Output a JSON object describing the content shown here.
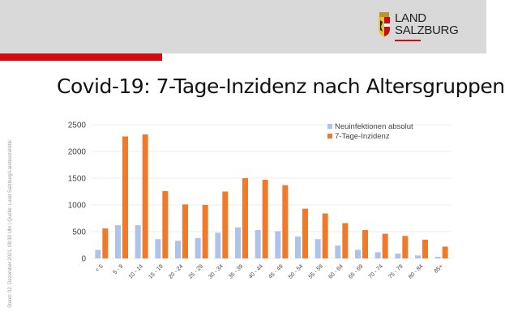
{
  "header": {
    "logo_line1": "LAND",
    "logo_line2": "SALZBURG"
  },
  "title": "Covid-19: 7-Tage-Inzidenz nach Altersgruppen",
  "side_note": "Stand: 02. Dezember 2021, 08:30 Uhr | Quelle: Land Salzburg/Landesstatistik",
  "colors": {
    "blue": "#aec3e8",
    "orange": "#f07a2a",
    "red": "#d20a11"
  },
  "chart_data": {
    "type": "bar",
    "title": "Covid-19: 7-Tage-Inzidenz nach Altersgruppen",
    "xlabel": "",
    "ylabel": "",
    "ylim": [
      0,
      2500
    ],
    "yticks": [
      "0",
      "500",
      "1000",
      "1500",
      "2000",
      "2500"
    ],
    "grid": true,
    "legend_position": "top-right",
    "categories": [
      "< 5",
      "5 - 9",
      "10 - 14",
      "15 - 19",
      "20 - 24",
      "25 - 29",
      "30 - 34",
      "35 - 39",
      "40 - 44",
      "45 - 49",
      "50 - 54",
      "55 - 59",
      "60 - 64",
      "65 - 69",
      "70 - 74",
      "75 - 79",
      "80 - 84",
      "85+"
    ],
    "series": [
      {
        "name": "Neuinfektionen absolut",
        "color": "#aec3e8",
        "values": [
          160,
          620,
          620,
          360,
          330,
          380,
          480,
          580,
          530,
          510,
          410,
          360,
          240,
          160,
          115,
          90,
          55,
          30
        ]
      },
      {
        "name": "7-Tage-Inzidenz",
        "color": "#f07a2a",
        "values": [
          560,
          2280,
          2320,
          1260,
          1010,
          1000,
          1250,
          1500,
          1470,
          1370,
          930,
          840,
          660,
          530,
          460,
          420,
          350,
          220
        ]
      }
    ]
  }
}
